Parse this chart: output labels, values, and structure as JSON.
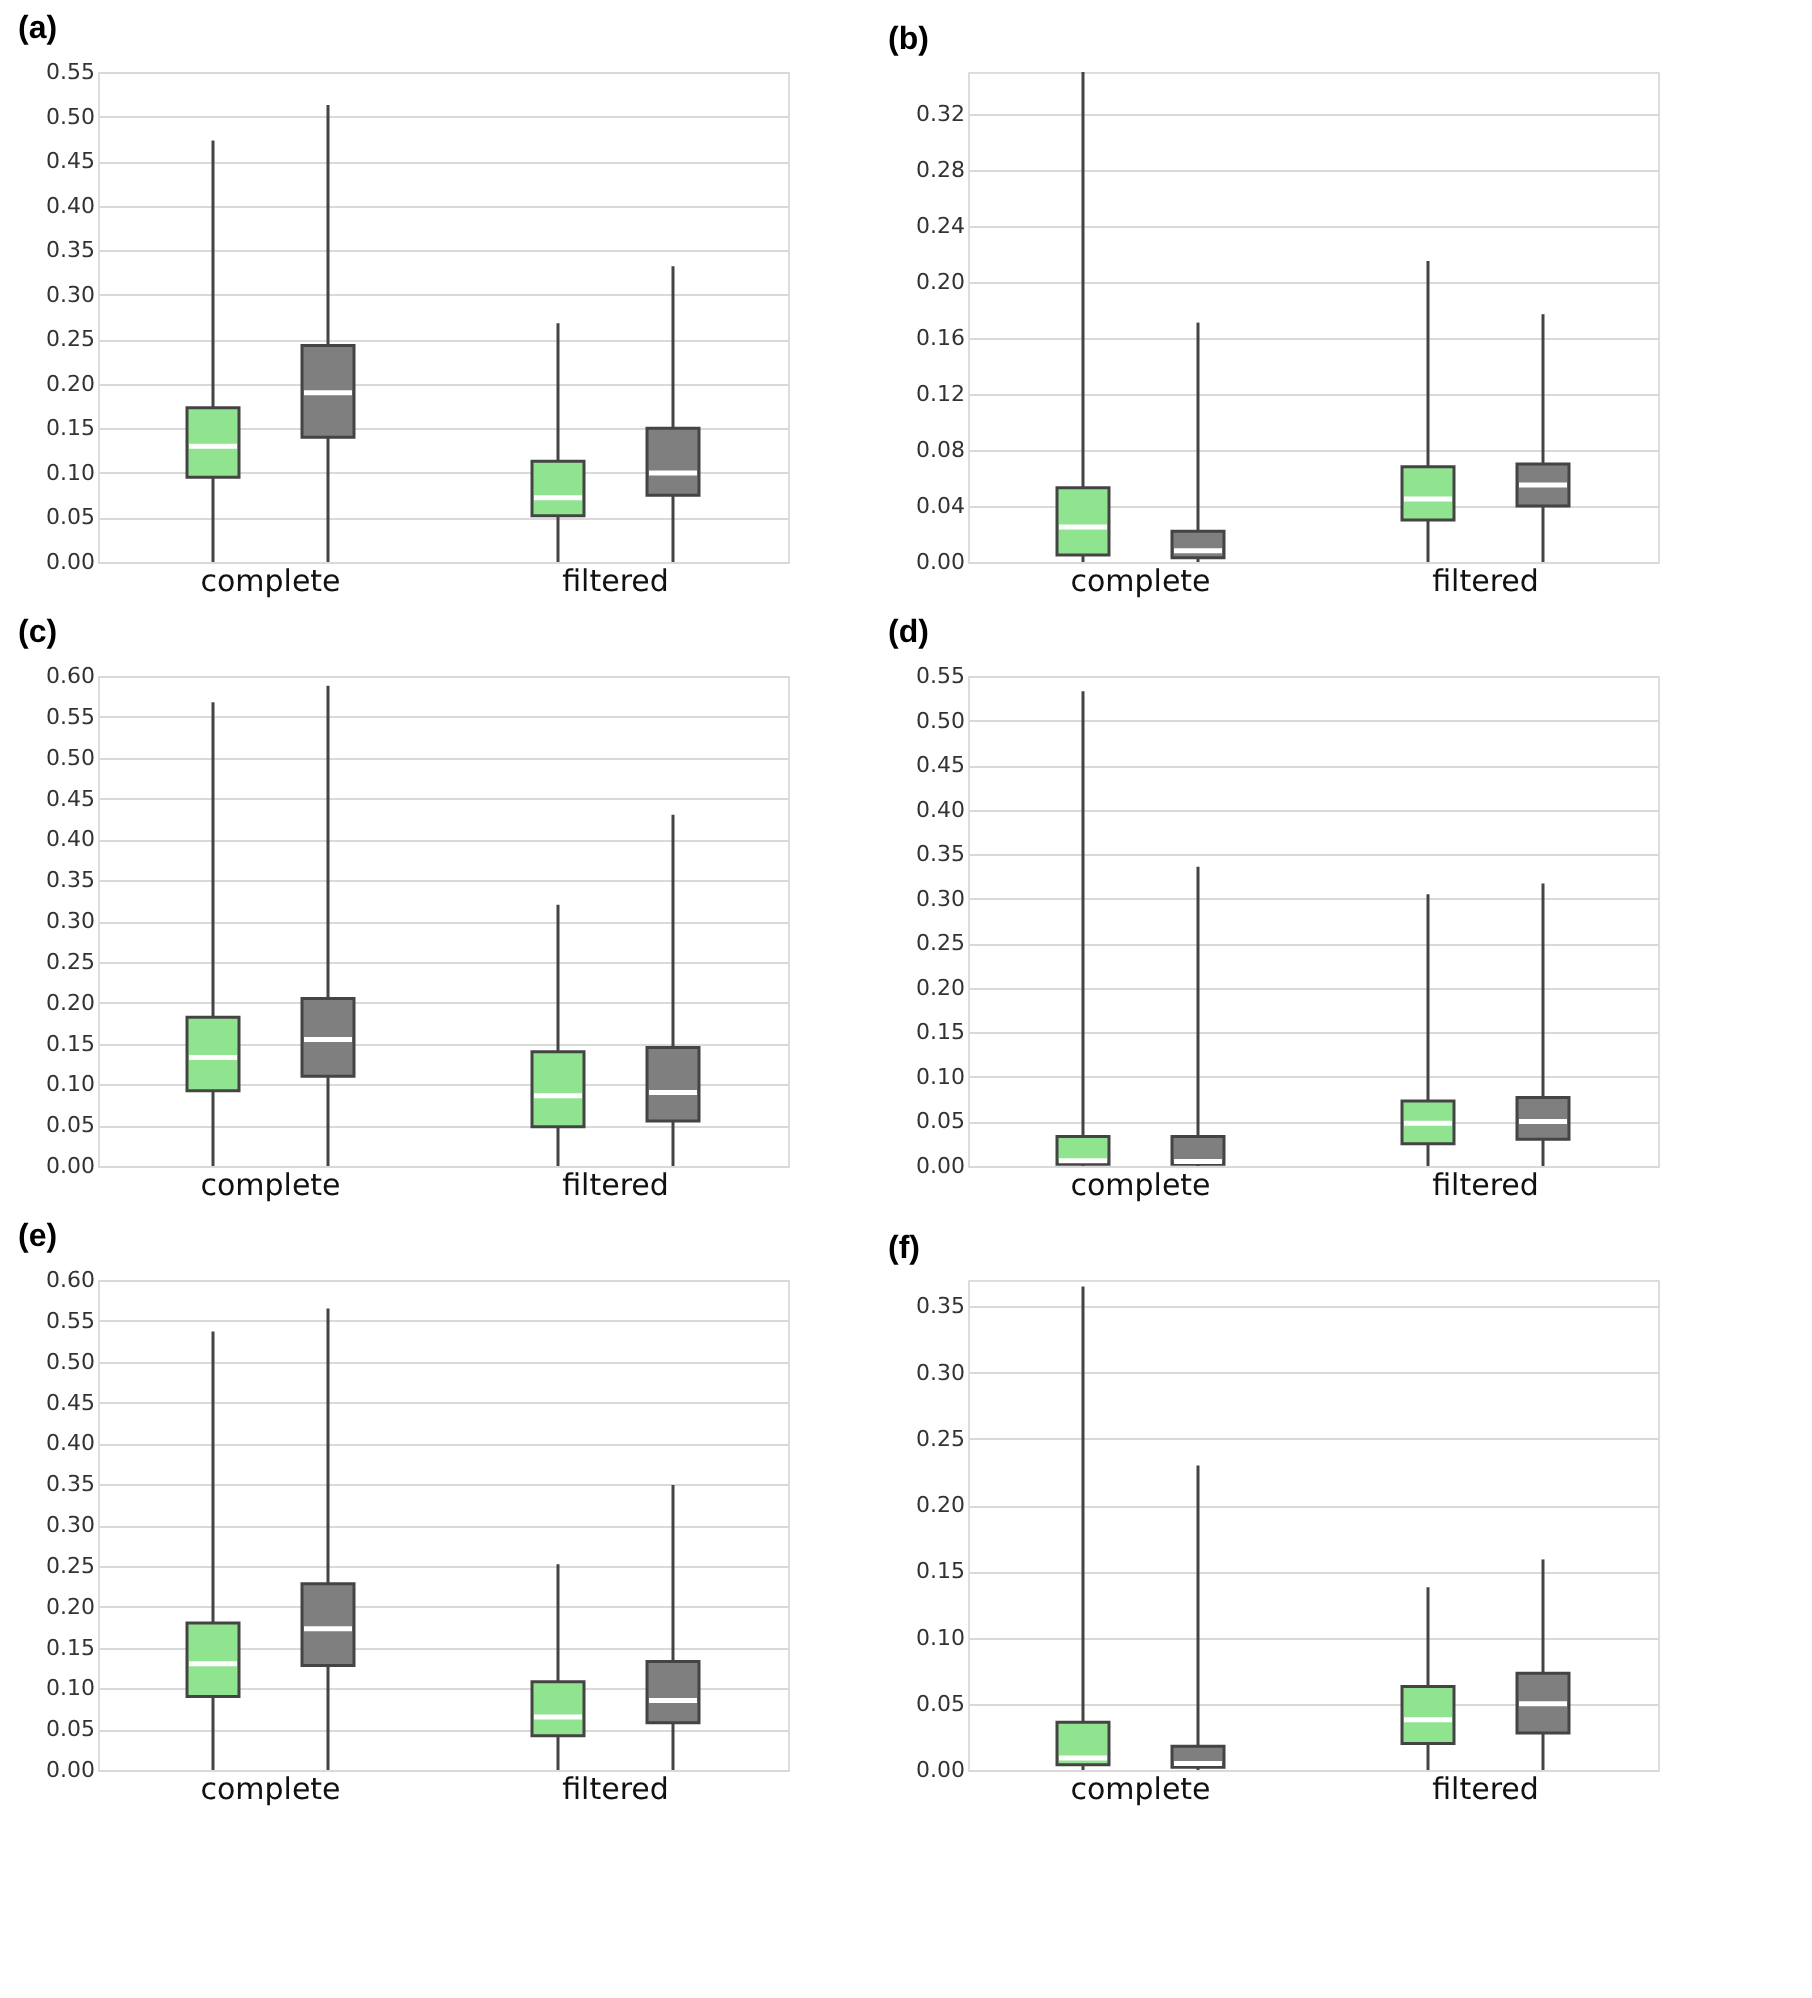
{
  "chart_data": [
    {
      "type": "box",
      "title": "(a)",
      "categories": [
        "complete",
        "filtered"
      ],
      "ylim": [
        0,
        0.55
      ],
      "yticks": [
        {
          "value": 0,
          "label": "0.00"
        },
        0.05,
        {
          "value": 0.1,
          "label": "0.10"
        },
        0.15,
        {
          "value": 0.2,
          "label": "0.20"
        },
        0.25,
        {
          "value": 0.3,
          "label": "0.30"
        },
        0.35,
        {
          "value": 0.4,
          "label": "0.40"
        },
        0.45,
        {
          "value": 0.5,
          "label": "0.50"
        },
        0.55
      ],
      "grid": "y",
      "series": [
        {
          "color": "#90e38f",
          "boxes": [
            {
              "low": 0,
              "q1": 0.095,
              "median": 0.13,
              "q3": 0.173,
              "high": 0.473
            },
            {
              "low": 0,
              "q1": 0.052,
              "median": 0.072,
              "q3": 0.113,
              "high": 0.268
            }
          ]
        },
        {
          "color": "#7f7f7f",
          "boxes": [
            {
              "low": 0,
              "q1": 0.14,
              "median": 0.19,
              "q3": 0.243,
              "high": 0.513
            },
            {
              "low": 0,
              "q1": 0.075,
              "median": 0.1,
              "q3": 0.15,
              "high": 0.332
            }
          ]
        }
      ]
    },
    {
      "type": "box",
      "title": "(b)",
      "categories": [
        "complete",
        "filtered"
      ],
      "ylim": [
        0,
        0.35
      ],
      "yticks": [
        {
          "value": 0,
          "label": "0.00"
        },
        0.04,
        0.08,
        0.12,
        0.16,
        {
          "value": 0.2,
          "label": "0.20"
        },
        0.24,
        0.28,
        0.32
      ],
      "grid": "y",
      "series": [
        {
          "color": "#90e38f",
          "boxes": [
            {
              "low": 0,
              "q1": 0.005,
              "median": 0.025,
              "q3": 0.053,
              "high": 0.35
            },
            {
              "low": 0,
              "q1": 0.03,
              "median": 0.045,
              "q3": 0.068,
              "high": 0.215
            }
          ]
        },
        {
          "color": "#7f7f7f",
          "boxes": [
            {
              "low": 0,
              "q1": 0.003,
              "median": 0.008,
              "q3": 0.022,
              "high": 0.171
            },
            {
              "low": 0,
              "q1": 0.04,
              "median": 0.055,
              "q3": 0.07,
              "high": 0.177
            }
          ]
        }
      ]
    },
    {
      "type": "box",
      "title": "(c)",
      "categories": [
        "complete",
        "filtered"
      ],
      "ylim": [
        0,
        0.6
      ],
      "yticks": [
        {
          "value": 0,
          "label": "0.00"
        },
        0.05,
        {
          "value": 0.1,
          "label": "0.10"
        },
        0.15,
        {
          "value": 0.2,
          "label": "0.20"
        },
        0.25,
        {
          "value": 0.3,
          "label": "0.30"
        },
        0.35,
        {
          "value": 0.4,
          "label": "0.40"
        },
        0.45,
        {
          "value": 0.5,
          "label": "0.50"
        },
        0.55,
        {
          "value": 0.6,
          "label": "0.60"
        }
      ],
      "grid": "y",
      "series": [
        {
          "color": "#90e38f",
          "boxes": [
            {
              "low": 0,
              "q1": 0.092,
              "median": 0.133,
              "q3": 0.182,
              "high": 0.568
            },
            {
              "low": 0,
              "q1": 0.048,
              "median": 0.086,
              "q3": 0.14,
              "high": 0.32
            }
          ]
        },
        {
          "color": "#7f7f7f",
          "boxes": [
            {
              "low": 0,
              "q1": 0.11,
              "median": 0.155,
              "q3": 0.205,
              "high": 0.588
            },
            {
              "low": 0,
              "q1": 0.055,
              "median": 0.09,
              "q3": 0.145,
              "high": 0.43
            }
          ]
        }
      ]
    },
    {
      "type": "box",
      "title": "(d)",
      "categories": [
        "complete",
        "filtered"
      ],
      "ylim": [
        0,
        0.55
      ],
      "yticks": [
        {
          "value": 0,
          "label": "0.00"
        },
        0.05,
        {
          "value": 0.1,
          "label": "0.10"
        },
        0.15,
        {
          "value": 0.2,
          "label": "0.20"
        },
        0.25,
        {
          "value": 0.3,
          "label": "0.30"
        },
        0.35,
        {
          "value": 0.4,
          "label": "0.40"
        },
        0.45,
        {
          "value": 0.5,
          "label": "0.50"
        },
        0.55
      ],
      "grid": "y",
      "series": [
        {
          "color": "#90e38f",
          "boxes": [
            {
              "low": 0,
              "q1": 0.002,
              "median": 0.006,
              "q3": 0.033,
              "high": 0.533
            },
            {
              "low": 0,
              "q1": 0.025,
              "median": 0.048,
              "q3": 0.073,
              "high": 0.305
            }
          ]
        },
        {
          "color": "#7f7f7f",
          "boxes": [
            {
              "low": 0,
              "q1": 0.002,
              "median": 0.005,
              "q3": 0.033,
              "high": 0.336
            },
            {
              "low": 0,
              "q1": 0.03,
              "median": 0.05,
              "q3": 0.077,
              "high": 0.317
            }
          ]
        }
      ]
    },
    {
      "type": "box",
      "title": "(e)",
      "categories": [
        "complete",
        "filtered"
      ],
      "ylim": [
        0,
        0.6
      ],
      "yticks": [
        {
          "value": 0,
          "label": "0.00"
        },
        0.05,
        {
          "value": 0.1,
          "label": "0.10"
        },
        0.15,
        {
          "value": 0.2,
          "label": "0.20"
        },
        0.25,
        {
          "value": 0.3,
          "label": "0.30"
        },
        0.35,
        {
          "value": 0.4,
          "label": "0.40"
        },
        0.45,
        {
          "value": 0.5,
          "label": "0.50"
        },
        0.55,
        {
          "value": 0.6,
          "label": "0.60"
        }
      ],
      "grid": "y",
      "series": [
        {
          "color": "#90e38f",
          "boxes": [
            {
              "low": 0,
              "q1": 0.09,
              "median": 0.13,
              "q3": 0.18,
              "high": 0.537
            },
            {
              "low": 0,
              "q1": 0.042,
              "median": 0.065,
              "q3": 0.108,
              "high": 0.252
            }
          ]
        },
        {
          "color": "#7f7f7f",
          "boxes": [
            {
              "low": 0,
              "q1": 0.128,
              "median": 0.173,
              "q3": 0.228,
              "high": 0.565
            },
            {
              "low": 0,
              "q1": 0.058,
              "median": 0.085,
              "q3": 0.133,
              "high": 0.349
            }
          ]
        }
      ]
    },
    {
      "type": "box",
      "title": "(f)",
      "categories": [
        "complete",
        "filtered"
      ],
      "ylim": [
        0,
        0.37
      ],
      "yticks": [
        {
          "value": 0,
          "label": "0.00"
        },
        0.05,
        {
          "value": 0.1,
          "label": "0.10"
        },
        0.15,
        {
          "value": 0.2,
          "label": "0.20"
        },
        0.25,
        {
          "value": 0.3,
          "label": "0.30"
        },
        0.35
      ],
      "grid": "y",
      "series": [
        {
          "color": "#90e38f",
          "boxes": [
            {
              "low": 0,
              "q1": 0.004,
              "median": 0.009,
              "q3": 0.036,
              "high": 0.365
            },
            {
              "low": 0,
              "q1": 0.02,
              "median": 0.038,
              "q3": 0.063,
              "high": 0.138
            }
          ]
        },
        {
          "color": "#7f7f7f",
          "boxes": [
            {
              "low": 0,
              "q1": 0.002,
              "median": 0.005,
              "q3": 0.018,
              "high": 0.23
            },
            {
              "low": 0,
              "q1": 0.028,
              "median": 0.05,
              "q3": 0.073,
              "high": 0.159
            }
          ]
        }
      ]
    }
  ]
}
